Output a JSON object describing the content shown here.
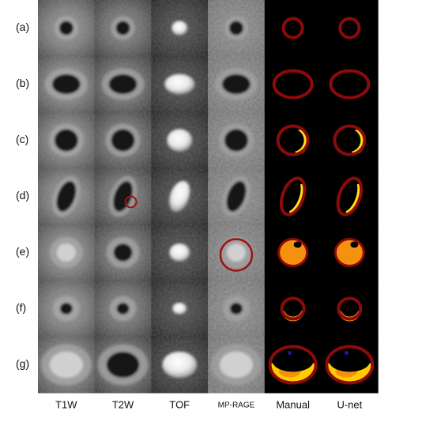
{
  "rows": [
    "(a)",
    "(b)",
    "(c)",
    "(d)",
    "(e)",
    "(f)",
    "(g)"
  ],
  "columns": [
    "T1W",
    "T2W",
    "TOF",
    "MP-RAGE",
    "Manual",
    "U-net"
  ]
}
